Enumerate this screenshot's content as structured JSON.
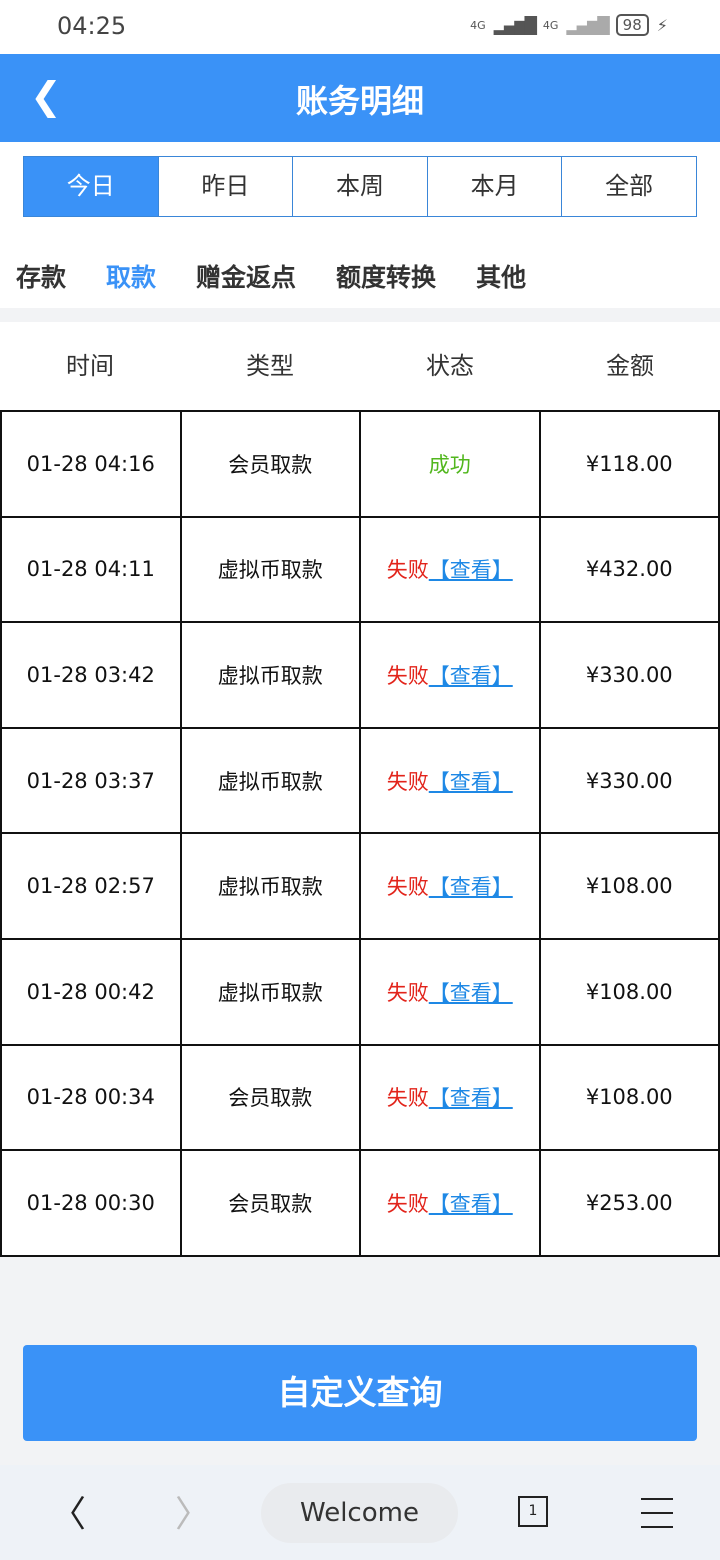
{
  "status_bar": {
    "time": "04:25",
    "signal1": "4G",
    "signal2": "4G",
    "battery": "98"
  },
  "header": {
    "title": "账务明细",
    "back_icon": "chevron-left-icon"
  },
  "period_tabs": [
    "今日",
    "昨日",
    "本周",
    "本月",
    "全部"
  ],
  "categories": [
    "存款",
    "取款",
    "赠金返点",
    "额度转换",
    "其他"
  ],
  "active_category": "取款",
  "columns": [
    "时间",
    "类型",
    "状态",
    "金额"
  ],
  "rows": [
    {
      "time": "01-28 04:16",
      "type": "会员取款",
      "status": "成功",
      "view": "",
      "amount": "¥118.00"
    },
    {
      "time": "01-28 04:11",
      "type": "虚拟币取款",
      "status": "失败",
      "view": "【查看】",
      "amount": "¥432.00"
    },
    {
      "time": "01-28 03:42",
      "type": "虚拟币取款",
      "status": "失败",
      "view": "【查看】",
      "amount": "¥330.00"
    },
    {
      "time": "01-28 03:37",
      "type": "虚拟币取款",
      "status": "失败",
      "view": "【查看】",
      "amount": "¥330.00"
    },
    {
      "time": "01-28 02:57",
      "type": "虚拟币取款",
      "status": "失败",
      "view": "【查看】",
      "amount": "¥108.00"
    },
    {
      "time": "01-28 00:42",
      "type": "虚拟币取款",
      "status": "失败",
      "view": "【查看】",
      "amount": "¥108.00"
    },
    {
      "time": "01-28 00:34",
      "type": "会员取款",
      "status": "失败",
      "view": "【查看】",
      "amount": "¥108.00"
    },
    {
      "time": "01-28 00:30",
      "type": "会员取款",
      "status": "失败",
      "view": "【查看】",
      "amount": "¥253.00"
    }
  ],
  "custom_query_button": "自定义查询",
  "browser_nav": {
    "address": "Welcome",
    "tab_count": "1"
  },
  "colors": {
    "primary": "#3a92f7",
    "success": "#52b71e",
    "fail": "#e2231a",
    "link": "#1e88e5"
  }
}
